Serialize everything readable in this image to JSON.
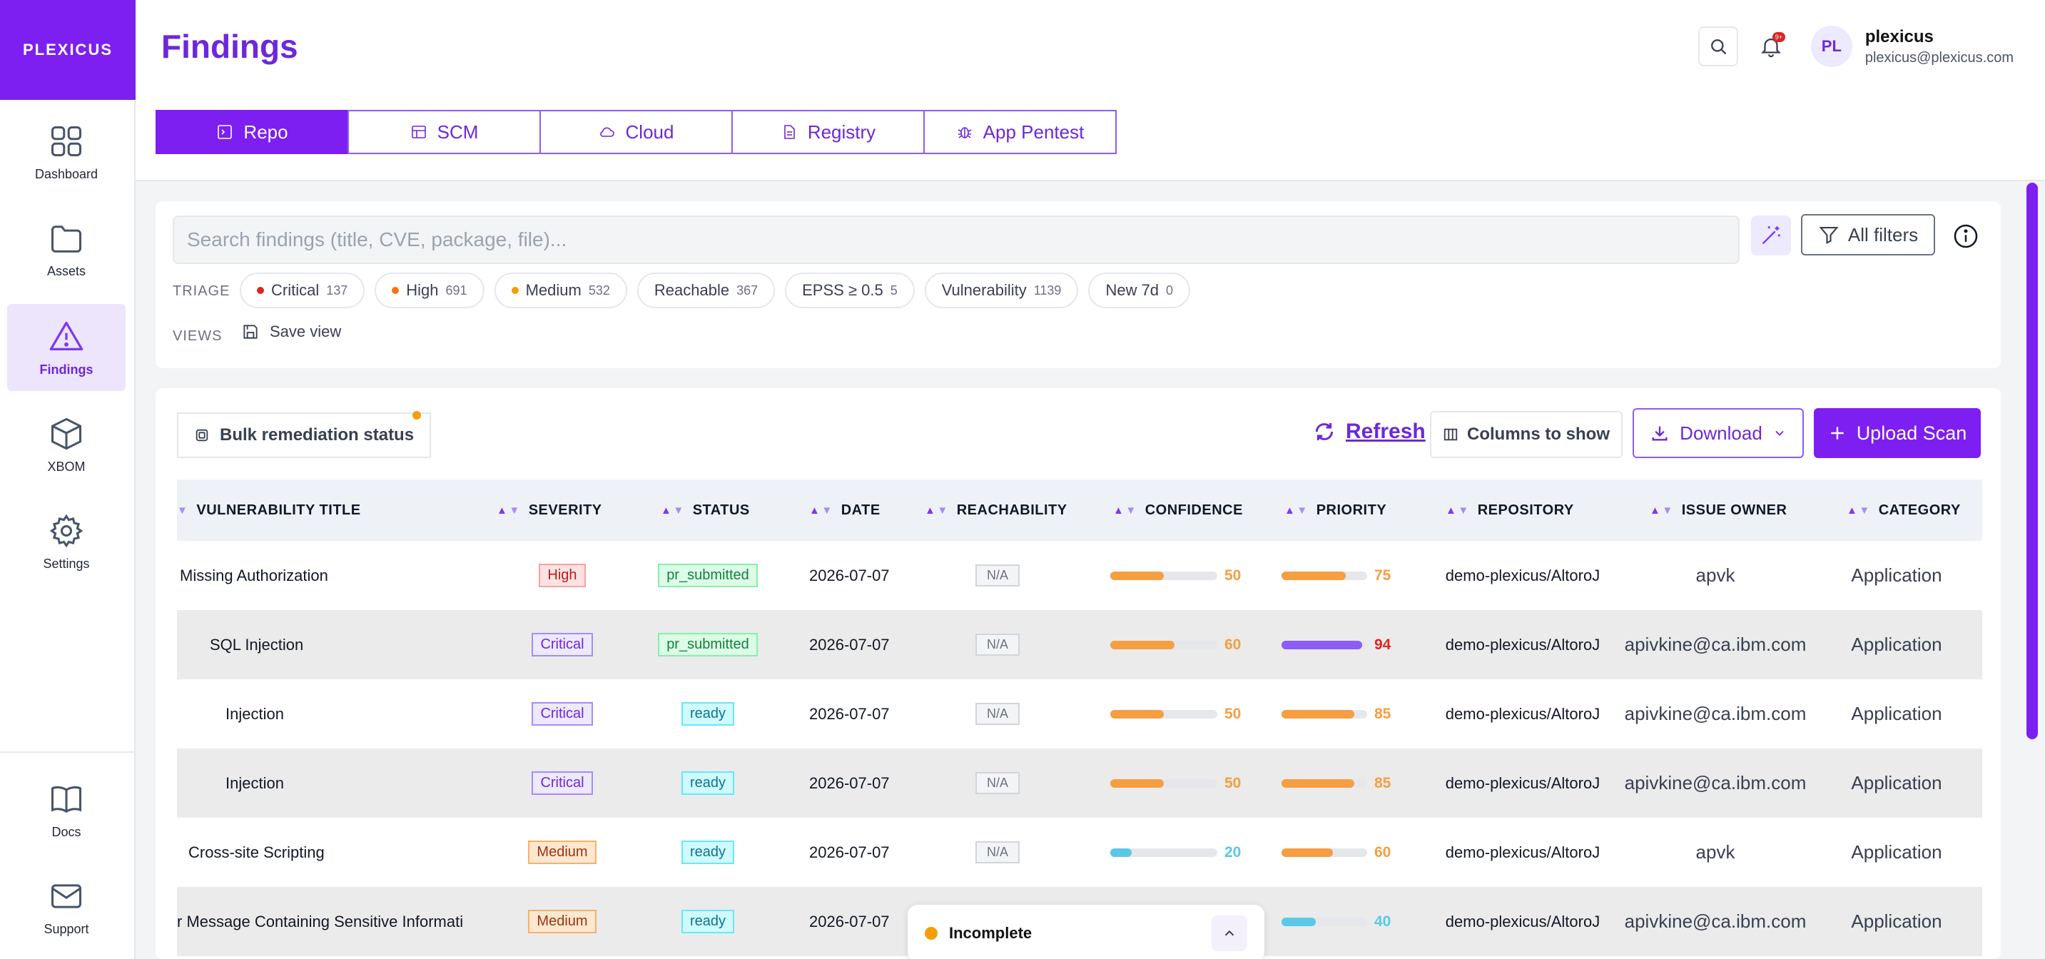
{
  "app": {
    "logo_text": "PLEXICUS",
    "page_title": "Findings"
  },
  "sidebar": {
    "items": [
      {
        "label": "Dashboard",
        "icon": "dashboard-icon"
      },
      {
        "label": "Assets",
        "icon": "folder-icon"
      },
      {
        "label": "Findings",
        "icon": "warning-icon",
        "active": true
      },
      {
        "label": "XBOM",
        "icon": "cube-icon"
      },
      {
        "label": "Settings",
        "icon": "gear-icon"
      }
    ],
    "bottom": [
      {
        "label": "Docs",
        "icon": "book-icon"
      },
      {
        "label": "Support",
        "icon": "mail-icon"
      }
    ]
  },
  "tabs": [
    {
      "label": "Repo",
      "icon": "terminal-icon",
      "active": true
    },
    {
      "label": "SCM",
      "icon": "table-icon"
    },
    {
      "label": "Cloud",
      "icon": "cloud-icon"
    },
    {
      "label": "Registry",
      "icon": "document-icon"
    },
    {
      "label": "App Pentest",
      "icon": "bug-icon"
    }
  ],
  "user": {
    "initials": "PL",
    "name": "plexicus",
    "email": "plexicus@plexicus.com",
    "notification_badge": "9+"
  },
  "filters": {
    "search_placeholder": "Search findings (title, CVE, package, file)...",
    "all_filters_label": "All filters",
    "triage_label": "TRIAGE",
    "views_label": "VIEWS",
    "save_view_label": "Save view",
    "chips": [
      {
        "label": "Critical",
        "count": "137",
        "dot": "#dc2626"
      },
      {
        "label": "High",
        "count": "691",
        "dot": "#f97316"
      },
      {
        "label": "Medium",
        "count": "532",
        "dot": "#f59e0b"
      },
      {
        "label": "Reachable",
        "count": "367"
      },
      {
        "label": "EPSS ≥ 0.5",
        "count": "5"
      },
      {
        "label": "Vulnerability",
        "count": "1139"
      },
      {
        "label": "New 7d",
        "count": "0"
      }
    ]
  },
  "toolbar": {
    "bulk_label": "Bulk remediation status",
    "refresh_label": "Refresh",
    "columns_label": "Columns to show",
    "download_label": "Download",
    "upload_label": "Upload Scan"
  },
  "table": {
    "columns": [
      "VULNERABILITY TITLE",
      "SEVERITY",
      "STATUS",
      "DATE",
      "REACHABILITY",
      "CONFIDENCE",
      "PRIORITY",
      "REPOSITORY",
      "ISSUE OWNER",
      "CATEGORY"
    ],
    "rows": [
      {
        "title": "Missing Authorization",
        "severity": "High",
        "status": "pr_submitted",
        "date": "2026-07-07",
        "reachability": "N/A",
        "confidence": 50,
        "priority": 75,
        "repository": "demo-plexicus/AltoroJ",
        "owner": "apvk",
        "category": "Application"
      },
      {
        "title": "SQL Injection",
        "severity": "Critical",
        "status": "pr_submitted",
        "date": "2026-07-07",
        "reachability": "N/A",
        "confidence": 60,
        "priority": 94,
        "repository": "demo-plexicus/AltoroJ",
        "owner": "apivkine@ca.ibm.com",
        "category": "Application"
      },
      {
        "title": "Injection",
        "severity": "Critical",
        "status": "ready",
        "date": "2026-07-07",
        "reachability": "N/A",
        "confidence": 50,
        "priority": 85,
        "repository": "demo-plexicus/AltoroJ",
        "owner": "apivkine@ca.ibm.com",
        "category": "Application"
      },
      {
        "title": "Injection",
        "severity": "Critical",
        "status": "ready",
        "date": "2026-07-07",
        "reachability": "N/A",
        "confidence": 50,
        "priority": 85,
        "repository": "demo-plexicus/AltoroJ",
        "owner": "apivkine@ca.ibm.com",
        "category": "Application"
      },
      {
        "title": "Cross-site Scripting",
        "severity": "Medium",
        "status": "ready",
        "date": "2026-07-07",
        "reachability": "N/A",
        "confidence": 20,
        "priority": 60,
        "repository": "demo-plexicus/AltoroJ",
        "owner": "apvk",
        "category": "Application"
      },
      {
        "title": "r Message Containing Sensitive Informati",
        "severity": "Medium",
        "status": "ready",
        "date": "2026-07-07",
        "reachability": "",
        "confidence": null,
        "priority": 40,
        "repository": "demo-plexicus/AltoroJ",
        "owner": "apivkine@ca.ibm.com",
        "category": "Application"
      }
    ]
  },
  "status_popup": {
    "label": "Incomplete"
  },
  "colors": {
    "brand": "#7c1ff0",
    "bar_orange": "#f59e42",
    "bar_purple": "#8b5cf6",
    "bar_cyan": "#5bc8e6",
    "num_red": "#dc2626"
  }
}
